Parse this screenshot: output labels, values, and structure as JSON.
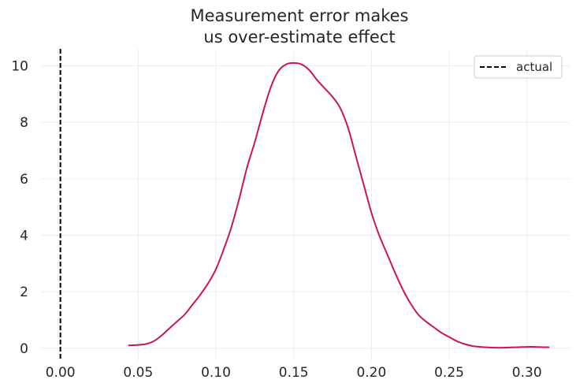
{
  "chart_data": {
    "type": "line",
    "title": [
      "Measurement error makes",
      "us over-estimate effect"
    ],
    "xlabel": "",
    "ylabel": "",
    "xlim": [
      -0.0125,
      0.3275
    ],
    "ylim": [
      -0.45,
      10.6
    ],
    "xticks": [
      0.0,
      0.05,
      0.1,
      0.15,
      0.2,
      0.25,
      0.3
    ],
    "xtick_labels": [
      "0.00",
      "0.05",
      "0.10",
      "0.15",
      "0.20",
      "0.25",
      "0.30"
    ],
    "yticks": [
      0,
      2,
      4,
      6,
      8,
      10
    ],
    "ytick_labels": [
      "0",
      "2",
      "4",
      "6",
      "8",
      "10"
    ],
    "grid": true,
    "legend": {
      "position": "top-right",
      "entries": [
        {
          "label": "actual",
          "style": "dashed",
          "color": "#000000"
        }
      ]
    },
    "reference_lines": [
      {
        "orientation": "vertical",
        "x": 0.0,
        "label": "actual",
        "style": "dashed",
        "color": "#000000"
      }
    ],
    "series": [
      {
        "color": "#c8174f",
        "x": [
          0.044,
          0.05,
          0.055,
          0.06,
          0.065,
          0.07,
          0.075,
          0.08,
          0.085,
          0.09,
          0.095,
          0.1,
          0.105,
          0.11,
          0.115,
          0.12,
          0.125,
          0.13,
          0.135,
          0.14,
          0.145,
          0.15,
          0.155,
          0.16,
          0.165,
          0.17,
          0.175,
          0.18,
          0.185,
          0.19,
          0.195,
          0.2,
          0.205,
          0.21,
          0.215,
          0.22,
          0.225,
          0.23,
          0.235,
          0.24,
          0.245,
          0.25,
          0.255,
          0.26,
          0.265,
          0.27,
          0.275,
          0.28,
          0.285,
          0.29,
          0.295,
          0.3,
          0.305,
          0.31,
          0.314
        ],
        "y": [
          0.1,
          0.12,
          0.15,
          0.25,
          0.45,
          0.7,
          0.95,
          1.2,
          1.55,
          1.9,
          2.3,
          2.8,
          3.5,
          4.3,
          5.3,
          6.4,
          7.3,
          8.3,
          9.2,
          9.8,
          10.05,
          10.1,
          10.05,
          9.85,
          9.5,
          9.2,
          8.9,
          8.5,
          7.8,
          6.8,
          5.8,
          4.8,
          4.0,
          3.35,
          2.7,
          2.1,
          1.6,
          1.2,
          0.95,
          0.75,
          0.55,
          0.4,
          0.25,
          0.15,
          0.08,
          0.05,
          0.03,
          0.02,
          0.02,
          0.03,
          0.04,
          0.05,
          0.05,
          0.04,
          0.04
        ]
      }
    ]
  }
}
